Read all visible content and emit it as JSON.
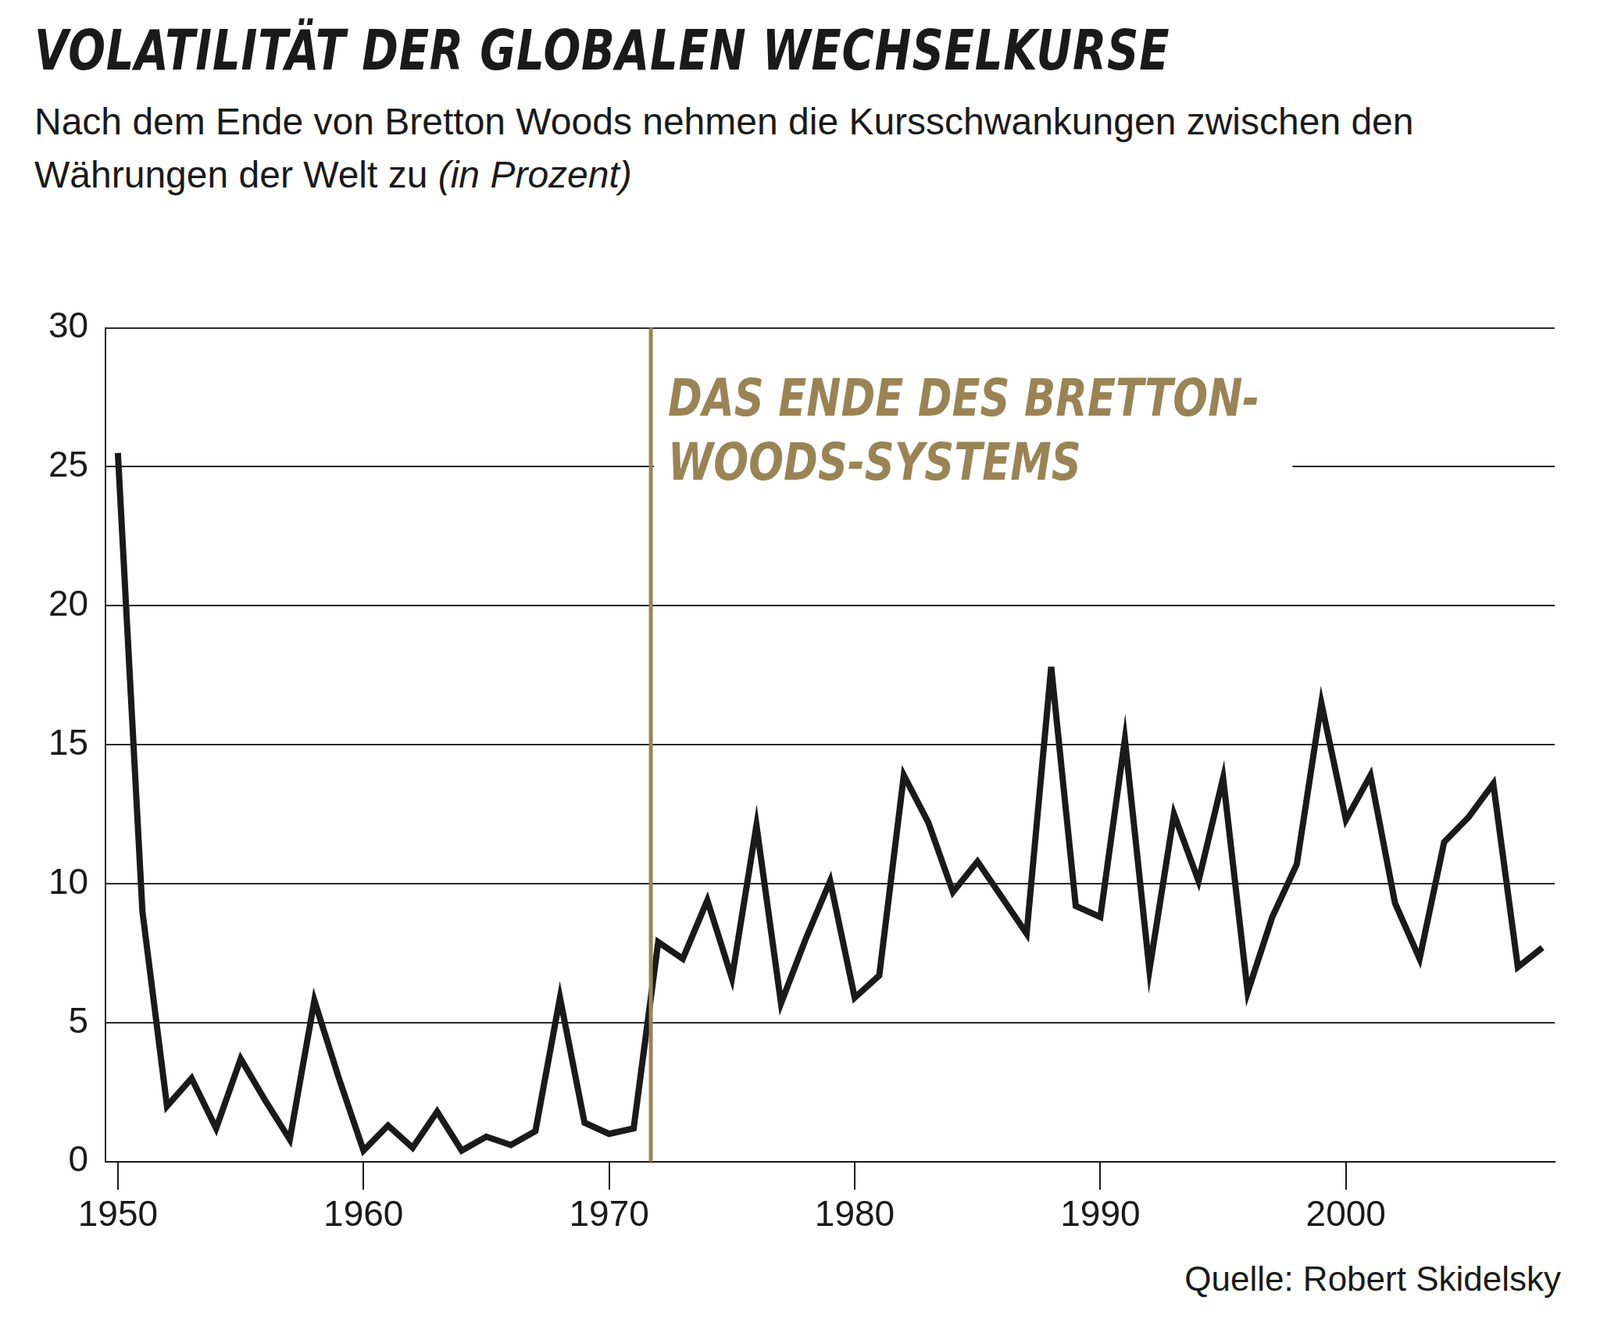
{
  "chart_data": {
    "type": "line",
    "title": "VOLATILITÄT DER GLOBALEN WECHSELKURSE",
    "subtitle": "Nach dem Ende von Bretton Woods nehmen die Kursschwankungen zwischen den Währungen der Welt zu",
    "unit": "(in Prozent)",
    "source": "Quelle: Robert Skidelsky",
    "x": [
      1950,
      1951,
      1952,
      1953,
      1954,
      1955,
      1956,
      1957,
      1958,
      1959,
      1960,
      1961,
      1962,
      1963,
      1964,
      1965,
      1966,
      1967,
      1968,
      1969,
      1970,
      1971,
      1972,
      1973,
      1974,
      1975,
      1976,
      1977,
      1978,
      1979,
      1980,
      1981,
      1982,
      1983,
      1984,
      1985,
      1986,
      1987,
      1988,
      1989,
      1990,
      1991,
      1992,
      1993,
      1994,
      1995,
      1996,
      1997,
      1998,
      1999,
      2000,
      2001,
      2002,
      2003,
      2004,
      2005,
      2006,
      2007,
      2008
    ],
    "values": [
      25.5,
      9,
      2,
      3,
      1.2,
      3.7,
      2.2,
      0.8,
      5.8,
      3,
      0.4,
      1.3,
      0.5,
      1.8,
      0.4,
      0.9,
      0.6,
      1.1,
      5.9,
      1.4,
      1.0,
      1.2,
      7.9,
      7.3,
      9.4,
      6.6,
      12.1,
      5.7,
      8.0,
      10.1,
      5.9,
      6.7,
      13.9,
      12.2,
      9.7,
      10.8,
      9.5,
      8.2,
      17.8,
      9.2,
      8.8,
      15.2,
      6.9,
      12.5,
      10.1,
      13.8,
      6.1,
      8.8,
      10.7,
      16.5,
      12.3,
      13.9,
      9.3,
      7.3,
      11.5,
      12.4,
      13.6,
      7.0,
      7.7
    ],
    "color": "#1a1a1a",
    "xlim": [
      1949.5,
      2008.5
    ],
    "xticks": [
      1950,
      1960,
      1970,
      1980,
      1990,
      2000
    ],
    "ylim": [
      0,
      30
    ],
    "yticks": [
      0,
      5,
      10,
      15,
      20,
      25,
      30
    ],
    "grid": true,
    "annotations": [
      {
        "text": [
          "DAS ENDE DES BRETTON-",
          "WOODS-SYSTEMS"
        ],
        "x": 1971.7
      }
    ]
  }
}
